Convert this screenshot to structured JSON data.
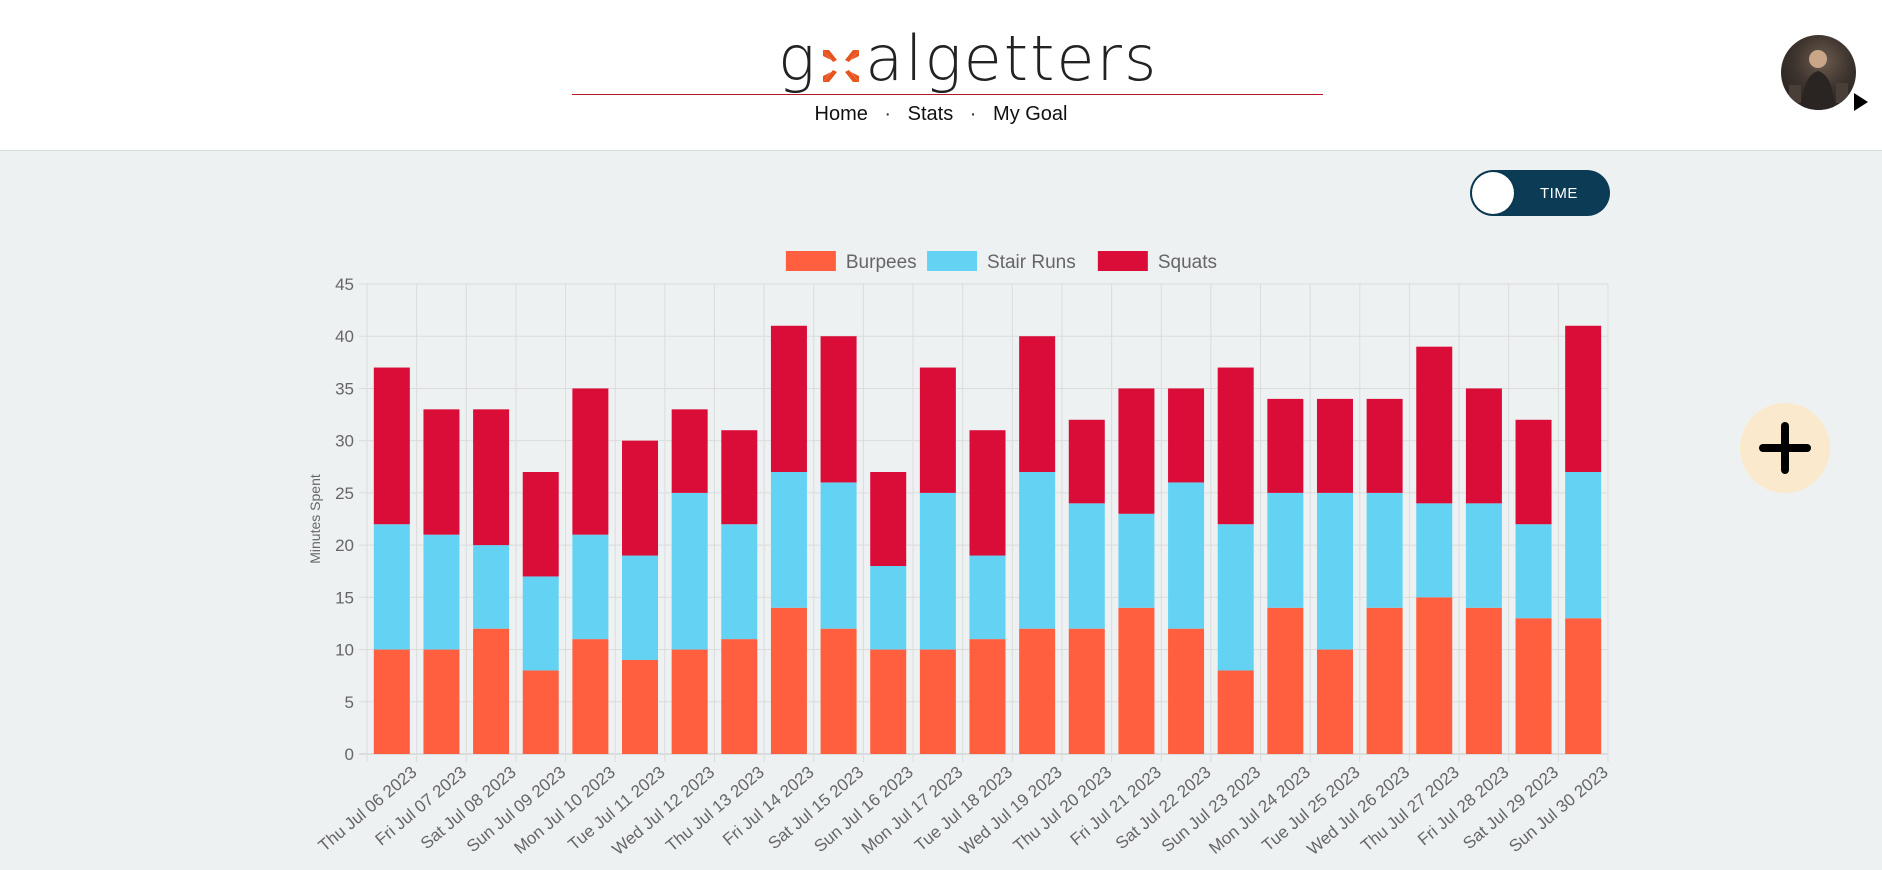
{
  "header": {
    "logo_prefix": "g",
    "logo_suffix": "algetters",
    "nav": [
      "Home",
      "Stats",
      "My Goal"
    ],
    "nav_separator": "·"
  },
  "toggle": {
    "label": "TIME",
    "state": "off"
  },
  "colors": {
    "burpees": "#ff5f3f",
    "stair_runs": "#64d2f3",
    "squats": "#da0c38",
    "brand_rule": "#b21a28",
    "toggle_bg": "#0b3b55",
    "add_button_bg": "#fbe9cd"
  },
  "icons": {
    "avatar": "user-avatar",
    "add": "plus-icon",
    "menu_caret": "caret-right-icon",
    "logo_mark": "arrows-inward-icon"
  },
  "chart_data": {
    "type": "bar",
    "stacked": true,
    "title": "",
    "xlabel": "",
    "ylabel": "Minutes Spent",
    "ylim": [
      0,
      45
    ],
    "yticks": [
      0,
      5,
      10,
      15,
      20,
      25,
      30,
      35,
      40,
      45
    ],
    "grid": true,
    "legend_position": "top-center",
    "categories": [
      "Thu Jul 06 2023",
      "Fri Jul 07 2023",
      "Sat Jul 08 2023",
      "Sun Jul 09 2023",
      "Mon Jul 10 2023",
      "Tue Jul 11 2023",
      "Wed Jul 12 2023",
      "Thu Jul 13 2023",
      "Fri Jul 14 2023",
      "Sat Jul 15 2023",
      "Sun Jul 16 2023",
      "Mon Jul 17 2023",
      "Tue Jul 18 2023",
      "Wed Jul 19 2023",
      "Thu Jul 20 2023",
      "Fri Jul 21 2023",
      "Sat Jul 22 2023",
      "Sun Jul 23 2023",
      "Mon Jul 24 2023",
      "Tue Jul 25 2023",
      "Wed Jul 26 2023",
      "Thu Jul 27 2023",
      "Fri Jul 28 2023",
      "Sat Jul 29 2023",
      "Sun Jul 30 2023"
    ],
    "series": [
      {
        "name": "Burpees",
        "color": "#ff5f3f",
        "values": [
          10,
          10,
          12,
          8,
          11,
          9,
          10,
          11,
          14,
          12,
          10,
          10,
          11,
          12,
          12,
          14,
          12,
          8,
          14,
          10,
          14,
          15,
          14,
          13,
          13
        ]
      },
      {
        "name": "Stair Runs",
        "color": "#64d2f3",
        "values": [
          12,
          11,
          8,
          9,
          10,
          10,
          15,
          11,
          13,
          14,
          8,
          15,
          8,
          15,
          12,
          9,
          14,
          14,
          11,
          15,
          11,
          9,
          10,
          9,
          14
        ]
      },
      {
        "name": "Squats",
        "color": "#da0c38",
        "values": [
          15,
          12,
          13,
          10,
          14,
          11,
          8,
          9,
          14,
          14,
          9,
          12,
          12,
          13,
          8,
          12,
          9,
          15,
          9,
          9,
          9,
          15,
          11,
          10,
          14
        ]
      }
    ]
  }
}
